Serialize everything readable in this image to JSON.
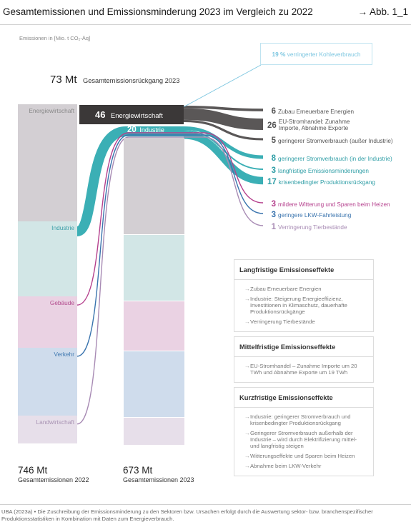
{
  "header": {
    "title": "Gesamtemissionen und Emissionsminderung 2023 im Vergleich zu 2022",
    "figure_ref": "→ Abb. 1_1"
  },
  "unit_label": "Emissionen in [Mio. t CO₂-Äq]",
  "callout": {
    "value": "19 %",
    "text": "verringerter Kohleverbrauch"
  },
  "reduction_total": {
    "value": "73 Mt",
    "label": "Gesamtemissionsrückgang 2023"
  },
  "chart_data": {
    "type": "sankey",
    "title": "Gesamtemissionen und Emissionsminderung 2023 im Vergleich zu 2022",
    "unit": "Mio. t CO₂-Äq",
    "columns": [
      {
        "label": "Gesamtemissionen 2022",
        "total": 746
      },
      {
        "label": "Gesamtemissionen 2023",
        "total": 673
      }
    ],
    "sectors_2022": [
      {
        "name": "Energiewirtschaft",
        "value": 256,
        "color": "#d3cfd3",
        "label_color": "#8a8a8a"
      },
      {
        "name": "Industrie",
        "value": 164,
        "color": "#d2e6e6",
        "label_color": "#3c9fa8"
      },
      {
        "name": "Gebäude",
        "value": 112,
        "color": "#ead2e3",
        "label_color": "#b34c8e"
      },
      {
        "name": "Verkehr",
        "value": 148,
        "color": "#cfdcec",
        "label_color": "#3f78b0"
      },
      {
        "name": "Landwirtschaft",
        "value": 61,
        "color": "#e7dfea",
        "label_color": "#a994b4"
      }
    ],
    "reductions_by_sector": [
      {
        "sector": "Energiewirtschaft",
        "value": 46,
        "label": "Energiewirtschaft",
        "color": "#3b3838"
      },
      {
        "sector": "Industrie",
        "value": 20,
        "label": "Industrie",
        "color": "#3bafb5"
      }
    ],
    "causes": [
      {
        "value": 6,
        "label": "Zubau Erneuerbare Energien",
        "color": "#555555",
        "from": "Energiewirtschaft"
      },
      {
        "value": 26,
        "label": "EU-Stromhandel: Zunahme Importe, Abnahme Exporte",
        "color": "#555555",
        "from": "Energiewirtschaft"
      },
      {
        "value": 5,
        "label": "geringerer Stromverbrauch (außer Industrie)",
        "color": "#555555",
        "from": "Energiewirtschaft"
      },
      {
        "value": 8,
        "label": "geringerer Stromverbrauch (in der Industrie)",
        "color": "#2f9ea6",
        "from": "Energiewirtschaft"
      },
      {
        "value": 3,
        "label": "langfristige Emissionsminderungen",
        "color": "#2f9ea6",
        "from": "Industrie"
      },
      {
        "value": 17,
        "label": "krisenbedingter Produktionsrückgang",
        "color": "#2f9ea6",
        "from": "Industrie"
      },
      {
        "value": 3,
        "label": "mildere Witterung und Sparen beim Heizen",
        "color": "#b5408d",
        "from": "Gebäude"
      },
      {
        "value": 3,
        "label": "geringere LKW-Fahrleistung",
        "color": "#3a74ae",
        "from": "Verkehr"
      },
      {
        "value": 1,
        "label": "Verringerung Tierbestände",
        "color": "#a88bb4",
        "from": "Landwirtschaft"
      }
    ]
  },
  "effects": [
    {
      "title": "Langfristige Emissionseffekte",
      "items": [
        "Zubau Erneuerbare Energien",
        "Industrie: Steigerung Energieeffizienz, Investitionen in Klimaschutz, dauerhafte Produktionsrückgänge",
        "Verringerung Tierbestände"
      ]
    },
    {
      "title": "Mittelfristige Emissionseffekte",
      "items": [
        "EU-Stromhandel – Zunahme Importe um 20 TWh und Abnahme Exporte um 19 TWh"
      ]
    },
    {
      "title": "Kurzfristige Emissionseffekte",
      "items": [
        "Industrie: geringerer Stromverbrauch und krisenbedingter Produktionsrückgang",
        "Geringerer Stromverbrauch außerhalb der Industrie – wird durch Elektrifizierung mittel- und langfristig steigen",
        "Witterungseffekte und Sparen beim Heizen",
        "Abnahme beim LKW-Verkehr"
      ]
    }
  ],
  "totals": [
    {
      "value": "746 Mt",
      "label": "Gesamtemissionen 2022"
    },
    {
      "value": "673 Mt",
      "label": "Gesamtemissionen 2023"
    }
  ],
  "footer": "UBA (2023a) • Die Zuschreibung der Emissionsminderung zu den Sektoren bzw. Ursachen erfolgt durch die Auswertung sektor- bzw. branchenspezifischer Produktionsstatistiken in Kombination mit Daten zum Energieverbrauch."
}
